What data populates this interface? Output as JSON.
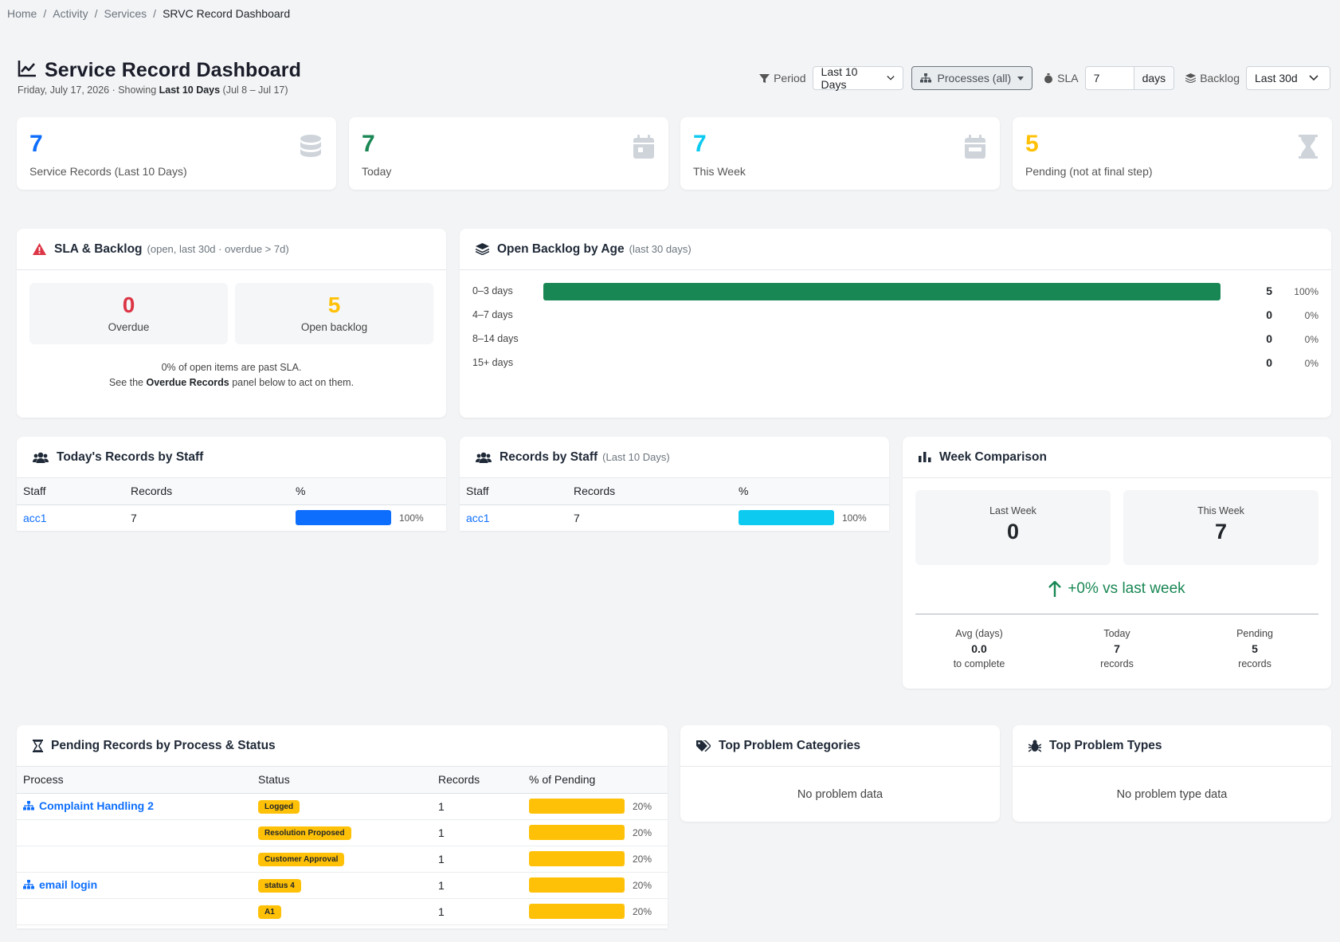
{
  "breadcrumb": {
    "home": "Home",
    "activity": "Activity",
    "services": "Services",
    "current": "SRVC Record Dashboard",
    "sep": "/"
  },
  "header": {
    "title": "Service Record Dashboard",
    "subtitle_prefix": "Friday, July 17, 2026 · Showing ",
    "subtitle_bold": "Last 10 Days",
    "subtitle_suffix": " (Jul 8 – Jul 17)"
  },
  "filters": {
    "period_label": "Period",
    "period_value": "Last 10 Days",
    "processes_value": "Processes (all)",
    "sla_label": "SLA",
    "sla_value": "7",
    "sla_unit": "days",
    "backlog_label": "Backlog",
    "backlog_value": "Last 30d"
  },
  "stats": [
    {
      "value": "7",
      "label": "Service Records (Last 10 Days)",
      "color": "#0d6efd",
      "icon": "database-icon"
    },
    {
      "value": "7",
      "label": "Today",
      "color": "#198754",
      "icon": "calendar-icon"
    },
    {
      "value": "7",
      "label": "This Week",
      "color": "#0dcaf0",
      "icon": "calendar-week-icon"
    },
    {
      "value": "5",
      "label": "Pending (not at final step)",
      "color": "#ffc107",
      "icon": "hourglass-icon"
    }
  ],
  "sla": {
    "title": "SLA & Backlog",
    "title_muted": "(open, last 30d · overdue > 7d)",
    "overdue_value": "0",
    "overdue_label": "Overdue",
    "backlog_value": "5",
    "backlog_label": "Open backlog",
    "note_line1": "0% of open items are past SLA.",
    "note_prefix": "See the ",
    "note_bold": "Overdue Records",
    "note_suffix": " panel below to act on them."
  },
  "backlog_age": {
    "title": "Open Backlog by Age",
    "title_muted": "(last 30 days)",
    "rows": [
      {
        "label": "0–3 days",
        "count": "5",
        "pct": "100%",
        "fraction": 1.0
      },
      {
        "label": "4–7 days",
        "count": "0",
        "pct": "0%",
        "fraction": 0
      },
      {
        "label": "8–14 days",
        "count": "0",
        "pct": "0%",
        "fraction": 0
      },
      {
        "label": "15+ days",
        "count": "0",
        "pct": "0%",
        "fraction": 0
      }
    ]
  },
  "today_staff": {
    "title": "Today's Records by Staff",
    "headers": [
      "Staff",
      "Records",
      "%"
    ],
    "rows": [
      {
        "staff": "acc1",
        "records": "7",
        "pct": "100%",
        "fraction": 1.0
      }
    ]
  },
  "staff_10d": {
    "title": "Records by Staff",
    "title_muted": "(Last 10 Days)",
    "headers": [
      "Staff",
      "Records",
      "%"
    ],
    "rows": [
      {
        "staff": "acc1",
        "records": "7",
        "pct": "100%",
        "fraction": 1.0
      }
    ]
  },
  "week": {
    "title": "Week Comparison",
    "last_label": "Last Week",
    "last_value": "0",
    "this_label": "This Week",
    "this_value": "7",
    "delta": "+0% vs last week",
    "avg_label": "Avg (days)",
    "avg_value": "0.0",
    "avg_sub": "to complete",
    "today_label": "Today",
    "today_value": "7",
    "today_sub": "records",
    "pending_label": "Pending",
    "pending_value": "5",
    "pending_sub": "records"
  },
  "pending": {
    "title": "Pending Records by Process & Status",
    "headers": [
      "Process",
      "Status",
      "Records",
      "% of Pending"
    ],
    "rows": [
      {
        "process": "Complaint Handling 2",
        "status": "Logged",
        "records": "1",
        "pct": "20%",
        "fraction": 1.0
      },
      {
        "process": "",
        "status": "Resolution Proposed",
        "records": "1",
        "pct": "20%",
        "fraction": 1.0
      },
      {
        "process": "",
        "status": "Customer Approval",
        "records": "1",
        "pct": "20%",
        "fraction": 1.0
      },
      {
        "process": "email login",
        "status": "status 4",
        "records": "1",
        "pct": "20%",
        "fraction": 1.0
      },
      {
        "process": "",
        "status": "A1",
        "records": "1",
        "pct": "20%",
        "fraction": 1.0
      }
    ]
  },
  "categories": {
    "title": "Top Problem Categories",
    "empty": "No problem data"
  },
  "types": {
    "title": "Top Problem Types",
    "empty": "No problem type data"
  },
  "colors": {
    "primary": "#0d6efd",
    "success": "#198754",
    "info": "#0dcaf0",
    "warning": "#ffc107",
    "danger": "#dc3545"
  }
}
